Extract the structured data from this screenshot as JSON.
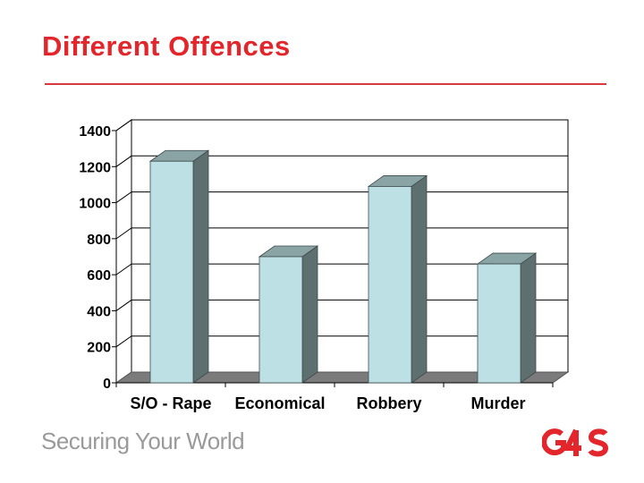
{
  "slide": {
    "title": "Different Offences",
    "tagline": "Securing Your World",
    "logo_text": "G4S"
  },
  "colors": {
    "title": "#e3262b",
    "bar_front": "#bde0e4",
    "bar_side": "#5e6f70",
    "bar_top": "#8aa4a6",
    "floor": "#7b7b7b",
    "logo_red": "#e3262b"
  },
  "chart_data": {
    "type": "bar",
    "categories": [
      "S/O - Rape",
      "Economical",
      "Robbery",
      "Murder"
    ],
    "values": [
      1230,
      700,
      1090,
      660
    ],
    "yticks": [
      "0",
      "200",
      "400",
      "600",
      "800",
      "1000",
      "1200",
      "1400"
    ],
    "ylim": [
      0,
      1400
    ],
    "grid": true,
    "legend": "none",
    "style": "3d"
  }
}
